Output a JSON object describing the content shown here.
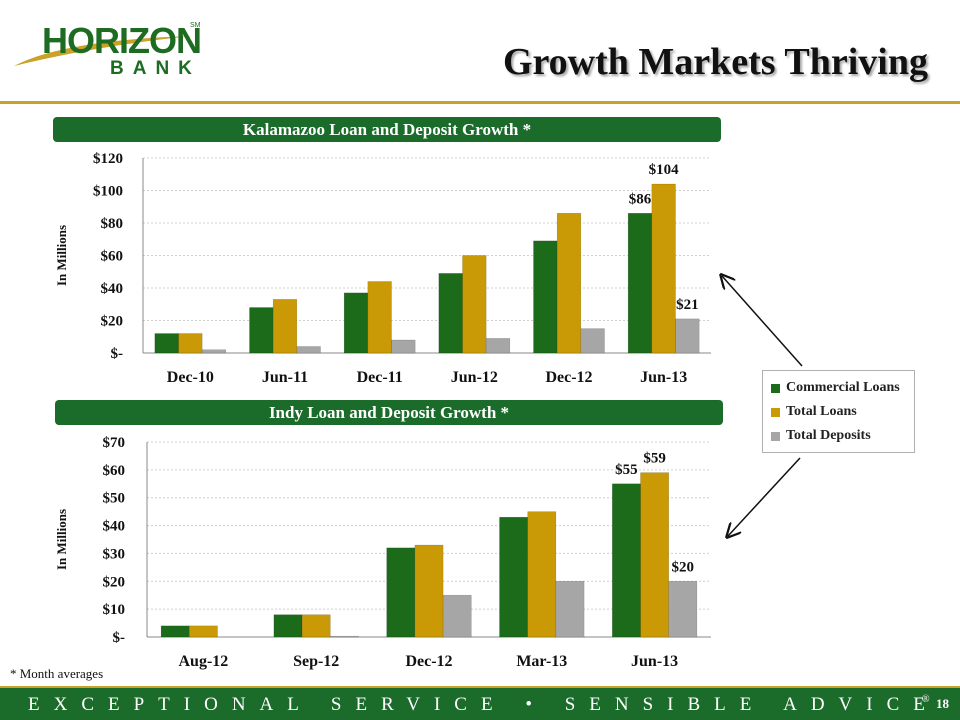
{
  "header": {
    "logo_main": "HORIZON",
    "logo_sm": "SM",
    "logo_sub": "BANK",
    "title": "Growth Markets Thriving"
  },
  "colors": {
    "commercial": "#1b6b1b",
    "total_loans": "#c99a06",
    "total_deposits": "#a6a6a6",
    "brand_green": "#1b6b2b",
    "brand_gold": "#c9a227"
  },
  "legend": {
    "items": [
      "Commercial Loans",
      "Total Loans",
      "Total Deposits"
    ]
  },
  "chart_data": [
    {
      "type": "bar",
      "title": "Kalamazoo Loan and Deposit Growth *",
      "ylabel": "In Millions",
      "categories": [
        "Dec-10",
        "Jun-11",
        "Dec-11",
        "Jun-12",
        "Dec-12",
        "Jun-13"
      ],
      "ylim": [
        0,
        120
      ],
      "yticks": [
        0,
        20,
        40,
        60,
        80,
        100,
        120
      ],
      "ytick_labels": [
        "$-",
        "$20",
        "$40",
        "$60",
        "$80",
        "$100",
        "$120"
      ],
      "series": [
        {
          "name": "Commercial Loans",
          "values": [
            12,
            28,
            37,
            49,
            69,
            86
          ]
        },
        {
          "name": "Total Loans",
          "values": [
            12,
            33,
            44,
            60,
            86,
            104
          ]
        },
        {
          "name": "Total Deposits",
          "values": [
            2,
            4,
            8,
            9,
            15,
            21
          ]
        }
      ],
      "data_labels": [
        {
          "series": 0,
          "index": 5,
          "text": "$86"
        },
        {
          "series": 1,
          "index": 5,
          "text": "$104"
        },
        {
          "series": 2,
          "index": 5,
          "text": "$21"
        }
      ],
      "grid": true
    },
    {
      "type": "bar",
      "title": "Indy Loan and Deposit Growth *",
      "ylabel": "In Millions",
      "categories": [
        "Aug-12",
        "Sep-12",
        "Dec-12",
        "Mar-13",
        "Jun-13"
      ],
      "ylim": [
        0,
        70
      ],
      "yticks": [
        0,
        10,
        20,
        30,
        40,
        50,
        60,
        70
      ],
      "ytick_labels": [
        "$-",
        "$10",
        "$20",
        "$30",
        "$40",
        "$50",
        "$60",
        "$70"
      ],
      "series": [
        {
          "name": "Commercial Loans",
          "values": [
            4,
            8,
            32,
            43,
            55
          ]
        },
        {
          "name": "Total Loans",
          "values": [
            4,
            8,
            33,
            45,
            59
          ]
        },
        {
          "name": "Total Deposits",
          "values": [
            0,
            0.3,
            15,
            20,
            20
          ]
        }
      ],
      "data_labels": [
        {
          "series": 0,
          "index": 4,
          "text": "$55"
        },
        {
          "series": 1,
          "index": 4,
          "text": "$59"
        },
        {
          "series": 2,
          "index": 4,
          "text": "$20"
        }
      ],
      "grid": true
    }
  ],
  "footnote": "* Month averages",
  "footer": {
    "tagline": "EXCEPTIONAL SERVICE • SENSIBLE ADVICE",
    "reg": "®",
    "page": "18"
  }
}
